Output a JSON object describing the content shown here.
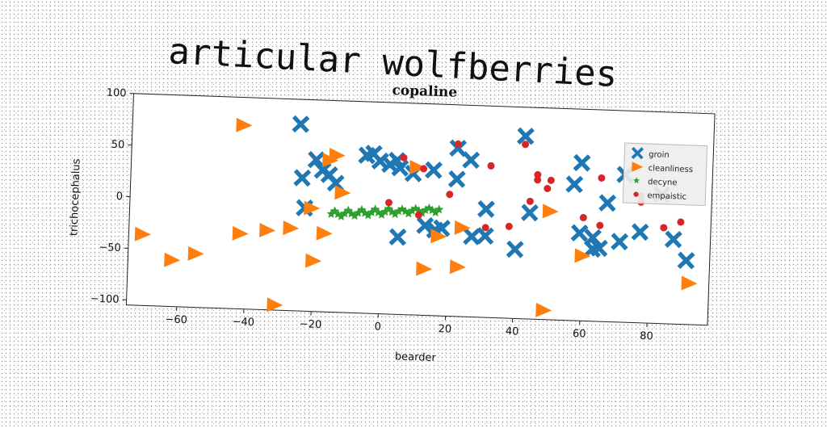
{
  "figure_title": "articular wolfberries",
  "chart_data": {
    "type": "scatter",
    "title": "copaline",
    "xlabel": "bearder",
    "ylabel": "trichocephalus",
    "xlim": [
      -75,
      98
    ],
    "ylim": [
      -105,
      100
    ],
    "xticks": [
      -60,
      -40,
      -20,
      0,
      20,
      40,
      60,
      80
    ],
    "yticks": [
      -100,
      -50,
      0,
      50,
      100
    ],
    "grid": false,
    "legend_position": "top-right",
    "series": [
      {
        "name": "groin",
        "marker": "x",
        "color": "#1f77b4",
        "points": [
          [
            -25,
            76
          ],
          [
            -24,
            24
          ],
          [
            -20,
            42
          ],
          [
            -18,
            32
          ],
          [
            -16,
            28
          ],
          [
            -14,
            20
          ],
          [
            -23,
            -5
          ],
          [
            -5,
            48
          ],
          [
            -3,
            50
          ],
          [
            -1,
            43
          ],
          [
            2,
            40
          ],
          [
            4,
            44
          ],
          [
            5,
            37
          ],
          [
            9,
            32
          ],
          [
            15,
            36
          ],
          [
            13,
            -18
          ],
          [
            16,
            -22
          ],
          [
            18,
            -20
          ],
          [
            5,
            -30
          ],
          [
            22,
            58
          ],
          [
            22,
            28
          ],
          [
            26,
            47
          ],
          [
            27,
            -27
          ],
          [
            31,
            0
          ],
          [
            31,
            -26
          ],
          [
            40,
            -38
          ],
          [
            42,
            72
          ],
          [
            44,
            -2
          ],
          [
            57,
            27
          ],
          [
            59,
            48
          ],
          [
            59,
            -20
          ],
          [
            63,
            -24
          ],
          [
            63,
            -35
          ],
          [
            65,
            -34
          ],
          [
            67,
            10
          ],
          [
            71,
            -27
          ],
          [
            72,
            38
          ],
          [
            77,
            -17
          ],
          [
            83,
            20
          ],
          [
            87,
            -23
          ],
          [
            91,
            -43
          ]
        ]
      },
      {
        "name": "cleanliness",
        "marker": "triangle-right",
        "color": "#ff7f0e",
        "points": [
          [
            -42,
            73
          ],
          [
            -16,
            42
          ],
          [
            -14,
            47
          ],
          [
            -12,
            11
          ],
          [
            -21,
            -5
          ],
          [
            -71,
            -36
          ],
          [
            -62,
            -60
          ],
          [
            -55,
            -53
          ],
          [
            -42,
            -32
          ],
          [
            -34,
            -28
          ],
          [
            -27,
            -25
          ],
          [
            -17,
            -29
          ],
          [
            -20,
            -56
          ],
          [
            -31,
            -100
          ],
          [
            10,
            38
          ],
          [
            17,
            -28
          ],
          [
            24,
            -19
          ],
          [
            23,
            -57
          ],
          [
            13,
            -60
          ],
          [
            49,
            -96
          ],
          [
            50,
            0
          ],
          [
            60,
            -42
          ],
          [
            92,
            -65
          ]
        ]
      },
      {
        "name": "decyne",
        "marker": "star",
        "color": "#2ca02c",
        "points": [
          [
            -15,
            -10
          ],
          [
            -13,
            -10
          ],
          [
            -11,
            -9
          ],
          [
            -9,
            -9
          ],
          [
            -7,
            -8
          ],
          [
            -5,
            -8
          ],
          [
            -3,
            -7
          ],
          [
            -1,
            -7
          ],
          [
            1,
            -6
          ],
          [
            3,
            -6
          ],
          [
            5,
            -5
          ],
          [
            7,
            -5
          ],
          [
            9,
            -4
          ],
          [
            11,
            -4
          ],
          [
            13,
            -3
          ],
          [
            15,
            -3
          ],
          [
            17,
            -2
          ],
          [
            -14,
            -7
          ],
          [
            -10,
            -6
          ],
          [
            -6,
            -5
          ],
          [
            -2,
            -4
          ],
          [
            2,
            -3
          ],
          [
            6,
            -3
          ],
          [
            10,
            -2
          ],
          [
            14,
            -1
          ],
          [
            -12,
            -12
          ],
          [
            -8,
            -11
          ],
          [
            -4,
            -10
          ],
          [
            0,
            -9
          ],
          [
            4,
            -8
          ],
          [
            8,
            -7
          ],
          [
            12,
            -6
          ],
          [
            16,
            -5
          ]
        ]
      },
      {
        "name": "empaistic",
        "marker": "circle",
        "color": "#d62728",
        "points": [
          [
            6,
            47
          ],
          [
            12,
            37
          ],
          [
            22,
            62
          ],
          [
            20,
            13
          ],
          [
            32,
            42
          ],
          [
            2,
            3
          ],
          [
            11,
            -8
          ],
          [
            31,
            -18
          ],
          [
            38,
            -16
          ],
          [
            42,
            64
          ],
          [
            46,
            35
          ],
          [
            46,
            30
          ],
          [
            50,
            30
          ],
          [
            49,
            22
          ],
          [
            44,
            9
          ],
          [
            60,
            -5
          ],
          [
            65,
            -12
          ],
          [
            65,
            34
          ],
          [
            77,
            18
          ],
          [
            77,
            12
          ],
          [
            84,
            -12
          ],
          [
            89,
            -6
          ]
        ]
      }
    ]
  }
}
